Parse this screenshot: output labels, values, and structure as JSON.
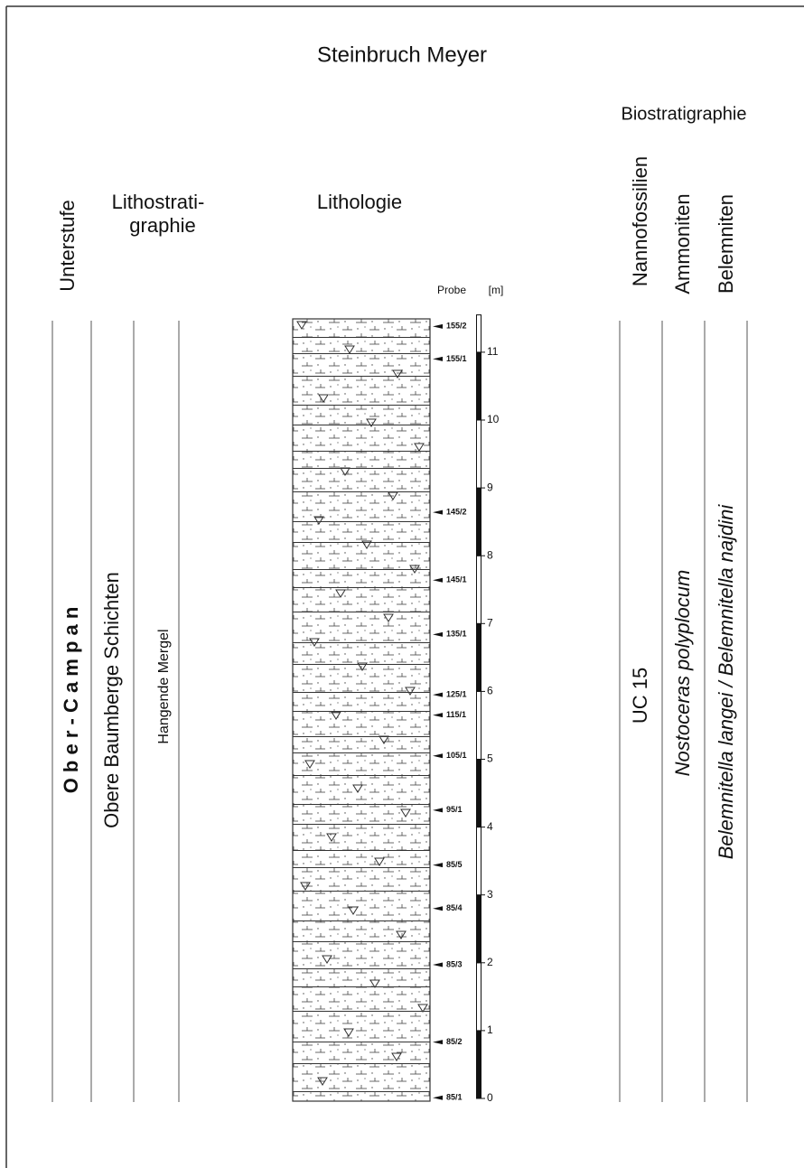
{
  "title": "Steinbruch Meyer",
  "headers": {
    "substage": "Unterstufe",
    "lithostratigraphy": [
      "Lithostrati-",
      "graphie"
    ],
    "lithology": "Lithologie",
    "sample": "Probe",
    "unit": "[m]",
    "biostratigraphy": "Biostratigraphie",
    "nannofossils": "Nannofossilien",
    "ammonites": "Ammoniten",
    "belemnites": "Belemniten"
  },
  "units": {
    "substage": "O b e r - C a m p a n",
    "formation": "Obere Baumberge Schichten",
    "member": "Hangende Mergel",
    "nannofossil_zone": "UC 15",
    "ammonite_zone": "Nostoceras polyplocum",
    "belemnite_zone": "Belemnitella langei / Belemnitella najdini"
  },
  "scale_ticks": [
    0,
    1,
    2,
    3,
    4,
    5,
    6,
    7,
    8,
    9,
    10,
    11
  ],
  "samples": [
    {
      "label": "155/2",
      "m": 11.38
    },
    {
      "label": "155/1",
      "m": 10.9
    },
    {
      "label": "145/2",
      "m": 8.64
    },
    {
      "label": "145/1",
      "m": 7.64
    },
    {
      "label": "135/1",
      "m": 6.84
    },
    {
      "label": "125/1",
      "m": 5.95
    },
    {
      "label": "115/1",
      "m": 5.65
    },
    {
      "label": "105/1",
      "m": 5.05
    },
    {
      "label": "95/1",
      "m": 4.25
    },
    {
      "label": "85/5",
      "m": 3.44
    },
    {
      "label": "85/4",
      "m": 2.8
    },
    {
      "label": "85/3",
      "m": 1.97
    },
    {
      "label": "85/2",
      "m": 0.83
    },
    {
      "label": "85/1",
      "m": 0.01
    }
  ]
}
